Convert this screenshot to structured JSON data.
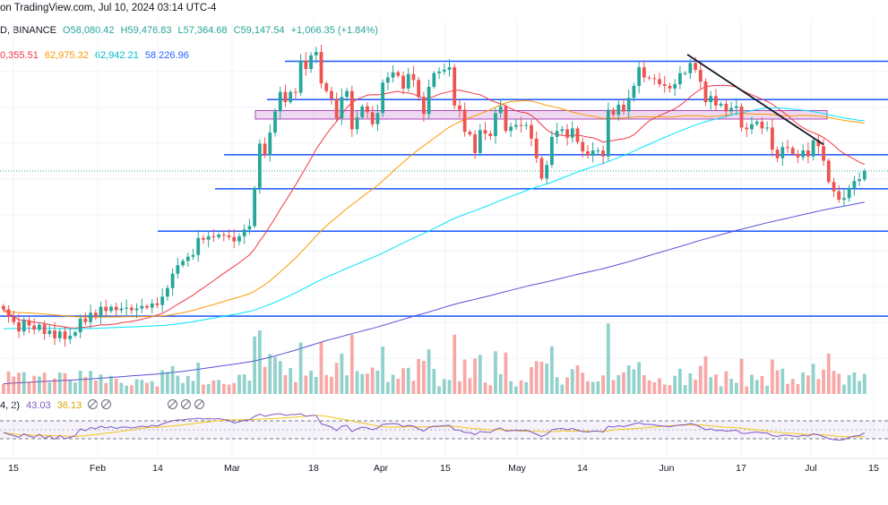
{
  "header": {
    "published": "on TradingView.com, Jul 10, 2024 03:14 UTC-4",
    "symbol_tail": "D, BINANCE",
    "open": "O58,080.42",
    "high": "H59,476.83",
    "low": "L57,364.68",
    "close": "C59,147.54",
    "change": "+1,066.35 (+1.84%)"
  },
  "indicators": {
    "ma20": "0,355.51",
    "ma50": "62,975.32",
    "ma100": "62,942.21",
    "ma200": "58,226.96"
  },
  "rsi": {
    "label": "4, 2)",
    "value": "43.03",
    "ma": "36.13"
  },
  "colors": {
    "up": "#26a69a",
    "down": "#ef5350",
    "level_lines": "#2962ff",
    "zone": "#ce93d8",
    "ma20": "#f23645",
    "ma50": "#ff9800",
    "ma100": "#00e5ff",
    "ma200": "#5b4ed6",
    "rsi": "#7e57c2",
    "rsi_ma": "#f5c518",
    "trendline": "#131722"
  },
  "chart_data": {
    "type": "candlestick",
    "xaxis_ticks": [
      "15",
      "Feb",
      "14",
      "Mar",
      "18",
      "Apr",
      "15",
      "May",
      "14",
      "Jun",
      "17",
      "Jul",
      "15"
    ],
    "horizontal_levels": [
      72000,
      67500,
      61000,
      57000,
      52000,
      42000
    ],
    "zone": [
      65200,
      66200
    ],
    "trendline_from": "Jun 6",
    "trendline_to": "Jul 3",
    "rsi_band": [
      30,
      70
    ],
    "close": [
      42800,
      41900,
      41300,
      40200,
      41500,
      40900,
      40400,
      41000,
      39900,
      40300,
      39400,
      40200,
      39300,
      39700,
      40100,
      41700,
      41300,
      42400,
      42000,
      43100,
      42600,
      43100,
      42700,
      42900,
      43000,
      42700,
      42900,
      43200,
      43000,
      43500,
      43300,
      44300,
      45300,
      47000,
      48000,
      48500,
      49000,
      49200,
      51200,
      51000,
      51400,
      51300,
      51600,
      51500,
      51300,
      50800,
      51400,
      52200,
      52600,
      57100,
      62300,
      61000,
      63600,
      66100,
      68400,
      67200,
      68400,
      68300,
      72100,
      71100,
      72700,
      73100,
      69400,
      68500,
      67600,
      65300,
      67800,
      68500,
      64000,
      65400,
      66700,
      66000,
      64600,
      65900,
      69500,
      70100,
      70700,
      70300,
      68800,
      70500,
      69800,
      67800,
      65800,
      69000,
      70600,
      70800,
      71000,
      71300,
      66800,
      66300,
      63700,
      63400,
      61200,
      63900,
      63500,
      63200,
      65900,
      66700,
      63800,
      64300,
      64500,
      64400,
      64500,
      62900,
      60600,
      58200,
      59800,
      63100,
      63800,
      64000,
      63000,
      64100,
      62500,
      61400,
      60900,
      61500,
      61500,
      60800,
      66300,
      65700,
      66900,
      66100,
      67700,
      69100,
      71300,
      70100,
      70000,
      69900,
      69300,
      69100,
      68800,
      69300,
      70600,
      70600,
      71800,
      71000,
      69600,
      67200,
      67900,
      66800,
      67000,
      66100,
      66500,
      66700,
      64200,
      64000,
      64600,
      64900,
      64100,
      64200,
      61600,
      60600,
      61900,
      61800,
      61100,
      60700,
      61500,
      60800,
      62700,
      62000,
      60300,
      57800,
      56700,
      55700,
      55900,
      57100,
      57900,
      58100,
      59100
    ],
    "rsi_values": [
      44,
      40,
      37,
      33,
      41,
      36,
      33,
      40,
      31,
      36,
      29,
      37,
      30,
      33,
      37,
      52,
      48,
      55,
      52,
      58,
      54,
      57,
      53,
      56,
      56,
      54,
      56,
      58,
      56,
      60,
      58,
      63,
      67,
      70,
      72,
      72,
      74,
      74,
      76,
      74,
      75,
      74,
      75,
      73,
      71,
      65,
      68,
      71,
      72,
      80,
      85,
      80,
      83,
      85,
      86,
      82,
      84,
      84,
      86,
      80,
      82,
      82,
      63,
      60,
      56,
      48,
      58,
      60,
      46,
      52,
      56,
      54,
      50,
      54,
      62,
      63,
      64,
      63,
      57,
      60,
      58,
      52,
      47,
      55,
      58,
      58,
      59,
      60,
      50,
      49,
      44,
      44,
      39,
      46,
      45,
      44,
      51,
      54,
      47,
      48,
      49,
      48,
      49,
      45,
      40,
      35,
      40,
      50,
      52,
      53,
      50,
      53,
      49,
      46,
      45,
      47,
      47,
      45,
      58,
      56,
      59,
      57,
      60,
      63,
      66,
      62,
      62,
      61,
      59,
      58,
      57,
      59,
      61,
      61,
      64,
      61,
      56,
      50,
      52,
      48,
      49,
      47,
      48,
      49,
      42,
      42,
      44,
      45,
      43,
      43,
      37,
      35,
      38,
      38,
      36,
      35,
      38,
      36,
      41,
      39,
      35,
      30,
      28,
      27,
      28,
      33,
      36,
      37,
      43
    ]
  }
}
